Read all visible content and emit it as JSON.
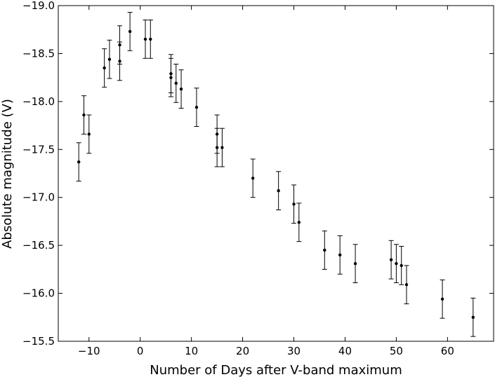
{
  "chart_data": {
    "type": "scatter",
    "title": "",
    "xlabel": "Number of Days after V-band maximum",
    "ylabel": "Absolute magnitude (V)",
    "xlim": [
      -16,
      69
    ],
    "ylim": [
      -15.5,
      -19.0
    ],
    "y_inverted": true,
    "grid": false,
    "xticks": [
      -10,
      0,
      10,
      20,
      30,
      40,
      50,
      60
    ],
    "xtick_labels": [
      "−10",
      "0",
      "10",
      "20",
      "30",
      "40",
      "50",
      "60"
    ],
    "yticks": [
      -19.0,
      -18.5,
      -18.0,
      -17.5,
      -17.0,
      -16.5,
      -16.0,
      -15.5
    ],
    "ytick_labels": [
      "−19.0",
      "−18.5",
      "−18.0",
      "−17.5",
      "−17.0",
      "−16.5",
      "−16.0",
      "−15.5"
    ],
    "marker_color": "#000000",
    "errorbar_color": "#000000",
    "points": [
      {
        "x": -12,
        "y": -17.37,
        "err": 0.2
      },
      {
        "x": -11,
        "y": -17.86,
        "err": 0.2
      },
      {
        "x": -10,
        "y": -17.66,
        "err": 0.2
      },
      {
        "x": -7,
        "y": -18.35,
        "err": 0.2
      },
      {
        "x": -6,
        "y": -18.44,
        "err": 0.2
      },
      {
        "x": -4,
        "y": -18.59,
        "err": 0.2
      },
      {
        "x": -4,
        "y": -18.42,
        "err": 0.2
      },
      {
        "x": -2,
        "y": -18.73,
        "err": 0.2
      },
      {
        "x": 1,
        "y": -18.65,
        "err": 0.2
      },
      {
        "x": 2,
        "y": -18.65,
        "err": 0.2
      },
      {
        "x": 6,
        "y": -18.29,
        "err": 0.2
      },
      {
        "x": 6,
        "y": -18.25,
        "err": 0.2
      },
      {
        "x": 7,
        "y": -18.19,
        "err": 0.2
      },
      {
        "x": 8,
        "y": -18.13,
        "err": 0.2
      },
      {
        "x": 11,
        "y": -17.94,
        "err": 0.2
      },
      {
        "x": 15,
        "y": -17.66,
        "err": 0.2
      },
      {
        "x": 15,
        "y": -17.52,
        "err": 0.2
      },
      {
        "x": 16,
        "y": -17.52,
        "err": 0.2
      },
      {
        "x": 22,
        "y": -17.2,
        "err": 0.2
      },
      {
        "x": 27,
        "y": -17.07,
        "err": 0.2
      },
      {
        "x": 30,
        "y": -16.93,
        "err": 0.2
      },
      {
        "x": 31,
        "y": -16.74,
        "err": 0.2
      },
      {
        "x": 36,
        "y": -16.45,
        "err": 0.2
      },
      {
        "x": 39,
        "y": -16.4,
        "err": 0.2
      },
      {
        "x": 42,
        "y": -16.31,
        "err": 0.2
      },
      {
        "x": 49,
        "y": -16.35,
        "err": 0.2
      },
      {
        "x": 50,
        "y": -16.31,
        "err": 0.2
      },
      {
        "x": 51,
        "y": -16.29,
        "err": 0.2
      },
      {
        "x": 52,
        "y": -16.09,
        "err": 0.2
      },
      {
        "x": 59,
        "y": -15.94,
        "err": 0.2
      },
      {
        "x": 65,
        "y": -15.75,
        "err": 0.2
      }
    ]
  }
}
